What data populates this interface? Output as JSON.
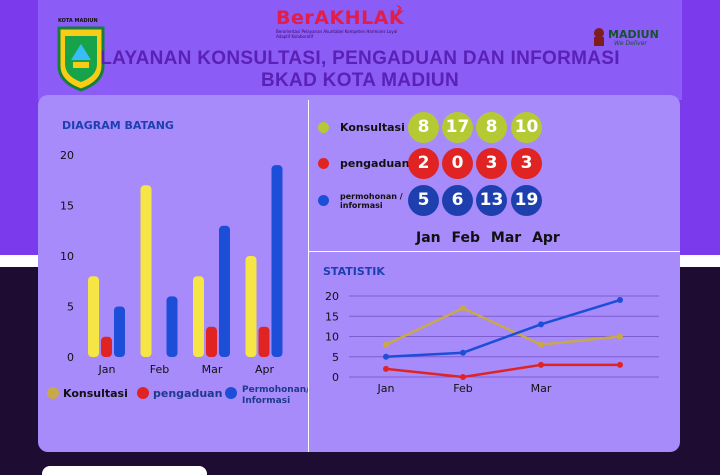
{
  "header": {
    "city_label": "KOTA MADIUN",
    "brand_name": "BerAKHLAK",
    "brand_tagline": "Berorientasi Pelayanan Akuntabel Kompeten Harmonis Loyal Adaptif Kolaboratif",
    "madiun_logo": "MADIUN",
    "madiun_sub": "We Deliver",
    "title_line1": "LAYANAN KONSULTASI, PENGADUAN DAN INFORMASI",
    "title_line2": "BKAD KOTA MADIUN"
  },
  "colors": {
    "konsultasi_bar": "#f5e645",
    "konsultasi_line": "#c9a84c",
    "pengaduan": "#e02424",
    "permohonan": "#1d4ed8",
    "konsultasi_circle": "#b5c934",
    "permohonan_circle": "#1e40af"
  },
  "summary": {
    "months": [
      "Jan",
      "Feb",
      "Mar",
      "Apr"
    ],
    "rows": [
      {
        "label": "Konsultasi",
        "values": [
          "8",
          "17",
          "8",
          "10"
        ]
      },
      {
        "label": "pengaduan",
        "values": [
          "2",
          "0",
          "3",
          "3"
        ]
      },
      {
        "label": "permohonan / informasi",
        "values": [
          "5",
          "6",
          "13",
          "19"
        ]
      }
    ]
  },
  "chart_data": [
    {
      "type": "bar",
      "title": "DIAGRAM BATANG",
      "categories": [
        "Jan",
        "Feb",
        "Mar",
        "Apr"
      ],
      "series": [
        {
          "name": "Konsultasi",
          "values": [
            8,
            17,
            8,
            10
          ]
        },
        {
          "name": "pengaduan",
          "values": [
            2,
            0,
            3,
            3
          ]
        },
        {
          "name": "Permohonan/ Informasi",
          "values": [
            5,
            6,
            13,
            19
          ]
        }
      ],
      "ylim": [
        0,
        20
      ],
      "yticks": [
        "0",
        "5",
        "10",
        "15",
        "20"
      ],
      "legend_position": "bottom"
    },
    {
      "type": "line",
      "title": "STATISTIK",
      "categories": [
        "Jan",
        "Feb",
        "Mar",
        "Apr"
      ],
      "xtick_labels": [
        "Jan",
        "Feb",
        "Mar"
      ],
      "series": [
        {
          "values": [
            8,
            17,
            8,
            10
          ]
        },
        {
          "values": [
            2,
            0,
            3,
            3
          ]
        },
        {
          "values": [
            5,
            6,
            13,
            19
          ]
        }
      ],
      "ylim": [
        0,
        20
      ],
      "yticks": [
        "0",
        "5",
        "10",
        "15",
        "20"
      ],
      "grid": true
    }
  ]
}
